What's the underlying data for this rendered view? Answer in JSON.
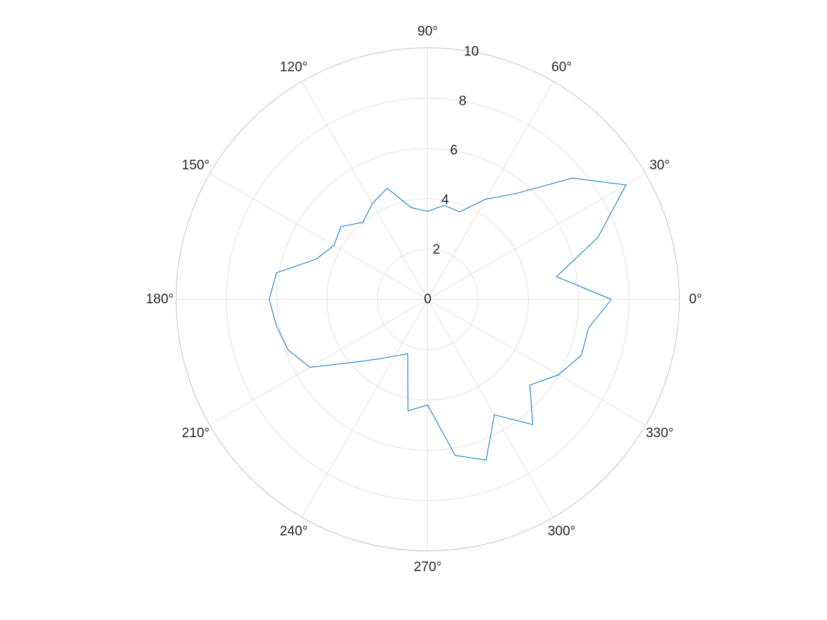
{
  "colors": {
    "series": "#0072bd",
    "grid": "#e3e3e3",
    "axis_outline": "#c2c2c2",
    "text": "#262626",
    "background": "#ffffff"
  },
  "chart_data": {
    "type": "line",
    "coordinate_system": "polar",
    "title": "",
    "theta_unit": "degrees",
    "theta_zero_location": "right",
    "theta_direction": "counterclockwise",
    "theta_tick_labels": [
      "0°",
      "30°",
      "60°",
      "90°",
      "120°",
      "150°",
      "180°",
      "210°",
      "240°",
      "270°",
      "300°",
      "330°"
    ],
    "theta_ticks": [
      0,
      30,
      60,
      90,
      120,
      150,
      180,
      210,
      240,
      270,
      300,
      330
    ],
    "r_lim": [
      0,
      10
    ],
    "r_ticks": [
      0,
      2,
      4,
      6,
      8,
      10
    ],
    "r_tick_labels": [
      "0",
      "2",
      "4",
      "6",
      "8",
      "10"
    ],
    "r_tick_label_angle_deg": 80,
    "grid": true,
    "legend": "none",
    "series": [
      {
        "theta": [
          0,
          10,
          20,
          30,
          40,
          50,
          60,
          70,
          80,
          90,
          100,
          110,
          120,
          130,
          140,
          150,
          160,
          170,
          180,
          190,
          200,
          210,
          220,
          230,
          240,
          250,
          260,
          270,
          280,
          290,
          300,
          310,
          320,
          330,
          340,
          350,
          360
        ],
        "r": [
          7.3,
          5.2,
          7.2,
          9.1,
          7.5,
          5.5,
          4.6,
          3.7,
          3.8,
          3.5,
          3.7,
          4.7,
          4.4,
          4.0,
          4.5,
          4.3,
          4.7,
          6.1,
          6.3,
          6.1,
          5.9,
          5.4,
          3.9,
          3.1,
          2.6,
          2.3,
          4.5,
          4.2,
          6.3,
          6.8,
          5.3,
          6.5,
          5.3,
          6.0,
          6.5,
          6.5,
          7.3
        ]
      }
    ]
  }
}
